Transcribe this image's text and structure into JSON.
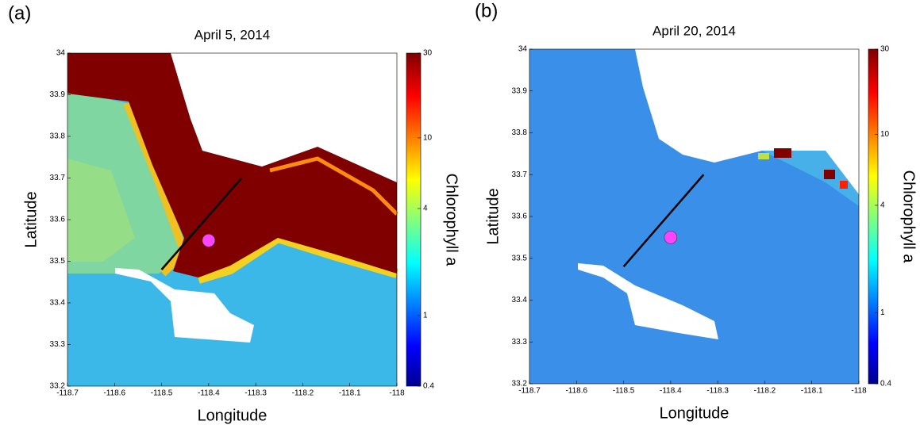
{
  "chart_data": [
    {
      "type": "map",
      "panel_label": "(a)",
      "title": "April 5, 2014",
      "x_label": "Longitude",
      "y_label": "Latitude",
      "xlim": [
        -118.7,
        -118
      ],
      "ylim": [
        33.2,
        34
      ],
      "xticks": [
        -118.7,
        -118.6,
        -118.5,
        -118.4,
        -118.3,
        -118.2,
        -118.1,
        -118
      ],
      "yticks": [
        33.2,
        33.3,
        33.4,
        33.5,
        33.6,
        33.7,
        33.8,
        33.9,
        34
      ],
      "colorbar": {
        "label": "Chlorophyll a",
        "scale": "log",
        "lim": [
          0.4,
          30
        ],
        "ticks": [
          0.4,
          1,
          4,
          10,
          30
        ]
      },
      "transect": {
        "x": [
          -118.5,
          -118.33
        ],
        "y": [
          33.48,
          33.7
        ],
        "color": "#000000"
      },
      "station": {
        "x": -118.4,
        "y": 33.55,
        "color": "#ff44ff"
      }
    },
    {
      "type": "map",
      "panel_label": "(b)",
      "title": "April 20, 2014",
      "x_label": "Longitude",
      "y_label": "Latitude",
      "xlim": [
        -118.7,
        -118
      ],
      "ylim": [
        33.2,
        34
      ],
      "xticks": [
        -118.7,
        -118.6,
        -118.5,
        -118.4,
        -118.3,
        -118.2,
        -118.1,
        -118
      ],
      "yticks": [
        33.2,
        33.3,
        33.4,
        33.5,
        33.6,
        33.7,
        33.8,
        33.9,
        34
      ],
      "colorbar": {
        "label": "Chlorophyll a",
        "scale": "log",
        "lim": [
          0.4,
          30
        ],
        "ticks": [
          0.4,
          1,
          4,
          10,
          30
        ]
      },
      "transect": {
        "x": [
          -118.5,
          -118.33
        ],
        "y": [
          33.48,
          33.7
        ],
        "color": "#000000"
      },
      "station": {
        "x": -118.4,
        "y": 33.55,
        "color": "#ff44ff"
      }
    }
  ]
}
